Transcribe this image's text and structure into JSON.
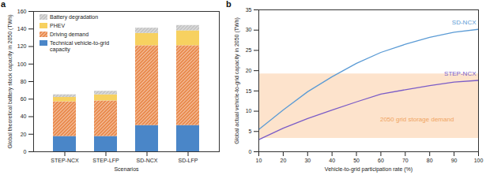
{
  "chart_data": [
    {
      "type": "bar",
      "title": "a",
      "stacked": true,
      "categories": [
        "STEP-NCX",
        "STEP-LFP",
        "SD-NCX",
        "SD-LFP"
      ],
      "x_label": "Scenarios",
      "y_label": "Global theoretical battery stock capacity in 2050 (TWh)",
      "ylim": [
        0,
        160
      ],
      "yticks": [
        0,
        20,
        40,
        60,
        80,
        100,
        120,
        140,
        160
      ],
      "legend": "top-left",
      "series": [
        {
          "name": "Technical vehicle-to-grid capacity",
          "color": "#4a86c8",
          "values": [
            17.5,
            17.5,
            30,
            30
          ]
        },
        {
          "name": "Driving demand",
          "color": "#e98a4d",
          "line_style": "hatched",
          "values": [
            39.5,
            40.5,
            91,
            91
          ]
        },
        {
          "name": "PHEV",
          "color": "#f7d160",
          "values": [
            5,
            7,
            14,
            17
          ]
        },
        {
          "name": "Battery degradation",
          "color": "#c4c4c4",
          "line_style": "hatched",
          "values": [
            3,
            4,
            6,
            6
          ]
        }
      ]
    },
    {
      "type": "line",
      "title": "b",
      "x_label": "Vehicle-to-grid participation rate (%)",
      "y_label": "Global actual vehicle-to-grid capacity in 2050 (TWh)",
      "x": [
        10,
        20,
        30,
        40,
        50,
        60,
        70,
        80,
        90,
        100
      ],
      "xlim": [
        10,
        100
      ],
      "xticks": [
        10,
        20,
        30,
        40,
        50,
        60,
        70,
        80,
        90,
        100
      ],
      "ylim": [
        0,
        35
      ],
      "yticks": [
        0,
        5,
        10,
        15,
        20,
        25,
        30,
        35
      ],
      "series": [
        {
          "name": "SD-NCX",
          "color": "#5b9bd5",
          "values": [
            5.5,
            10.3,
            14.8,
            18.5,
            21.8,
            24.5,
            26.5,
            28.2,
            29.5,
            30.2
          ]
        },
        {
          "name": "STEP-NCX",
          "color": "#7a5cc7",
          "values": [
            3,
            5.8,
            8.2,
            10.3,
            12.3,
            14.2,
            15.3,
            16.3,
            17.2,
            17.6
          ]
        }
      ],
      "band": {
        "label": "2050 grid storage demand",
        "y1": 3.3,
        "y2": 19.2,
        "color": "#fde3cc",
        "text_color": "#f0a35f"
      }
    }
  ]
}
